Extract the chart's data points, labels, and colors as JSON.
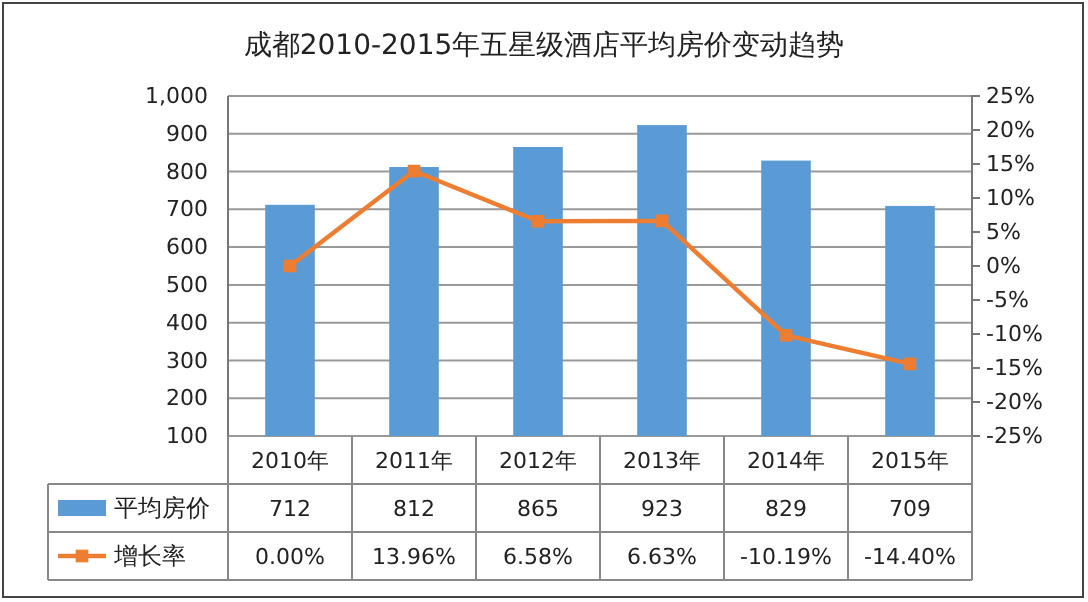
{
  "chart_data": {
    "type": "bar",
    "title": "成都2010-2015年五星级酒店平均房价变动趋势",
    "categories": [
      "2010年",
      "2011年",
      "2012年",
      "2013年",
      "2014年",
      "2015年"
    ],
    "series": [
      {
        "name": "平均房价",
        "color": "#5b9bd5",
        "values": [
          712,
          812,
          865,
          923,
          829,
          709
        ],
        "value_labels": [
          "712",
          "812",
          "865",
          "923",
          "829",
          "709"
        ]
      },
      {
        "name": "增长率",
        "type": "line",
        "axis": "y2",
        "color": "#ed7d31",
        "values": [
          0.0,
          13.96,
          6.58,
          6.63,
          -10.19,
          -14.4
        ],
        "value_labels": [
          "0.00%",
          "13.96%",
          "6.58%",
          "6.63%",
          "-10.19%",
          "-14.40%"
        ]
      }
    ],
    "ylim": [
      100,
      1000
    ],
    "yticks": [
      100,
      200,
      300,
      400,
      500,
      600,
      700,
      800,
      900,
      {
        "value": 1000,
        "label": "1,000"
      }
    ],
    "y2lim": [
      -25,
      25
    ],
    "y2ticks": [
      {
        "value": -25,
        "label": "-25%"
      },
      {
        "value": -20,
        "label": "-20%"
      },
      {
        "value": -15,
        "label": "-15%"
      },
      {
        "value": -10,
        "label": "-10%"
      },
      {
        "value": -5,
        "label": "-5%"
      },
      {
        "value": 0,
        "label": "0%"
      },
      {
        "value": 5,
        "label": "5%"
      },
      {
        "value": 10,
        "label": "10%"
      },
      {
        "value": 15,
        "label": "15%"
      },
      {
        "value": 20,
        "label": "20%"
      },
      {
        "value": 25,
        "label": "25%"
      }
    ],
    "grid": "y",
    "legend": "bottom",
    "marker": "square",
    "line_style": "solid"
  }
}
